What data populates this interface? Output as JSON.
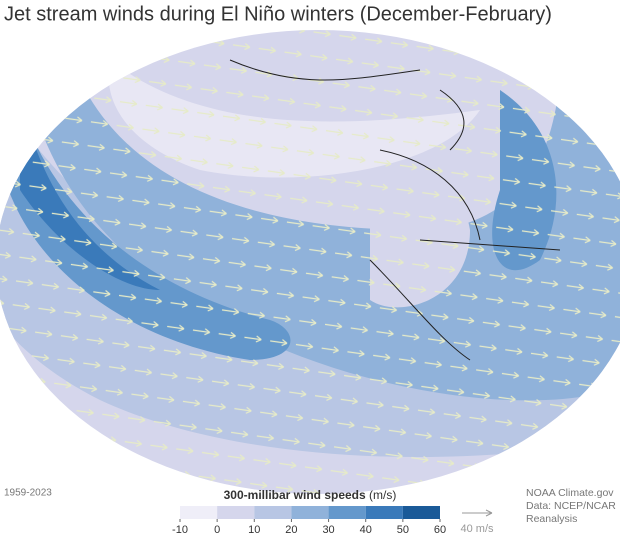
{
  "title": "Jet stream winds during El Niño winters (December-February)",
  "period": "1959-2023",
  "legend": {
    "title": "300-millibar wind speeds",
    "unit": "(m/s)",
    "ticks": [
      -10,
      0,
      10,
      20,
      30,
      40,
      50,
      60
    ],
    "colors": [
      "#efeef8",
      "#d5d6ec",
      "#b8c6e4",
      "#90b2da",
      "#6498cc",
      "#3a7aba",
      "#1a5a98"
    ]
  },
  "reference_arrow": "40 m/s",
  "credit": [
    "NOAA Climate.gov",
    "Data: NCEP/NCAR",
    "Reanalysis"
  ]
}
